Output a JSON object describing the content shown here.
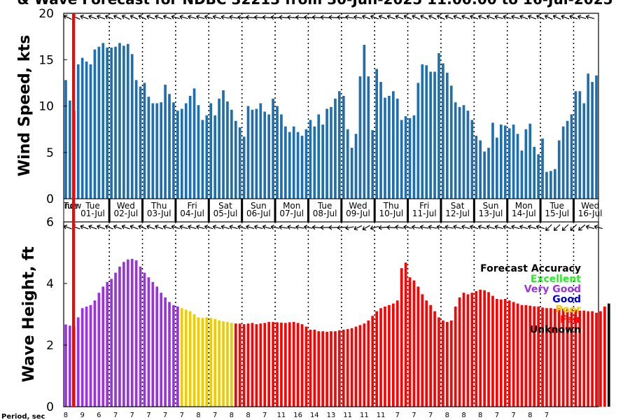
{
  "title": "& Wave Forecast for NDBC 32213 from 30-Jun-2025 11:00:00 to 16-Jul-2025",
  "period_label": "Period, sec",
  "colors": {
    "wind_bar": "#1f6faf",
    "now_line": "#ff0000",
    "accuracy": {
      "Excellent": "#22ee22",
      "Very Good": "#9933dd",
      "Good": "#0000cc",
      "Poor": "#eecc00",
      "Fair": "#ff0000",
      "Unknown": "#000000"
    }
  },
  "accuracy_legend": {
    "title": "Forecast Accuracy",
    "items": [
      "Excellent",
      "Very Good",
      "Good",
      "Poor",
      "Fair",
      "Unknown"
    ]
  },
  "now_marker": {
    "line1": "Tue",
    "line2": "now"
  },
  "days": [
    {
      "dow": "Tue",
      "date": "01-Jul"
    },
    {
      "dow": "Wed",
      "date": "02-Jul"
    },
    {
      "dow": "Thu",
      "date": "03-Jul"
    },
    {
      "dow": "Fri",
      "date": "04-Jul"
    },
    {
      "dow": "Sat",
      "date": "05-Jul"
    },
    {
      "dow": "Sun",
      "date": "06-Jul"
    },
    {
      "dow": "Mon",
      "date": "07-Jul"
    },
    {
      "dow": "Tue",
      "date": "08-Jul"
    },
    {
      "dow": "Wed",
      "date": "09-Jul"
    },
    {
      "dow": "Thu",
      "date": "10-Jul"
    },
    {
      "dow": "Fri",
      "date": "11-Jul"
    },
    {
      "dow": "Sat",
      "date": "12-Jul"
    },
    {
      "dow": "Sun",
      "date": "13-Jul"
    },
    {
      "dow": "Mon",
      "date": "14-Jul"
    },
    {
      "dow": "Tue",
      "date": "15-Jul"
    },
    {
      "dow": "Wed",
      "date": "16-Jul"
    }
  ],
  "chart_data": [
    {
      "type": "bar",
      "ylabel": "Wind Speed, kts",
      "ylim": [
        0,
        20
      ],
      "yticks": [
        0,
        5,
        10,
        15,
        20
      ],
      "values": [
        12.8,
        10.6,
        9.5,
        14.5,
        15.2,
        14.8,
        14.5,
        16.1,
        16.4,
        16.8,
        16.3,
        16.3,
        16.4,
        16.8,
        16.5,
        16.7,
        15.6,
        12.8,
        12.1,
        12.5,
        11.0,
        10.3,
        10.3,
        10.4,
        12.3,
        11.3,
        10.4,
        9.5,
        9.7,
        10.3,
        11.1,
        11.9,
        10.1,
        8.5,
        9.0,
        10.3,
        9.0,
        10.8,
        11.7,
        10.5,
        9.6,
        8.4,
        7.7,
        6.7,
        10.0,
        9.6,
        9.7,
        10.3,
        9.4,
        9.1,
        10.8,
        10.0,
        9.1,
        7.8,
        7.2,
        7.8,
        7.2,
        6.8,
        7.5,
        8.5,
        7.8,
        9.1,
        8.0,
        9.7,
        9.9,
        10.8,
        11.6,
        11.1,
        7.5,
        5.5,
        7.0,
        13.2,
        16.6,
        13.2,
        7.4,
        14.0,
        12.6,
        10.9,
        11.1,
        11.6,
        10.8,
        8.5,
        8.9,
        8.7,
        9.0,
        12.5,
        14.5,
        14.4,
        13.7,
        13.7,
        15.7,
        14.6,
        13.6,
        12.2,
        10.4,
        9.9,
        10.1,
        9.5,
        8.5,
        6.8,
        6.3,
        5.1,
        5.5,
        8.2,
        6.6,
        8.0,
        7.9,
        7.6,
        8.0,
        7.0,
        5.2,
        7.5,
        8.1,
        5.6,
        4.8,
        6.5,
        2.9,
        3.0,
        3.2,
        6.3,
        7.8,
        8.4,
        9.1,
        11.6,
        11.6,
        10.3,
        13.5,
        12.6,
        13.3
      ],
      "direction_angles_deg": [
        25,
        25,
        25,
        20,
        20,
        20,
        20,
        20,
        20,
        20,
        20,
        20,
        25,
        25,
        25,
        25,
        25,
        25,
        25,
        25,
        20,
        20,
        20,
        20,
        20,
        15,
        15,
        15,
        15,
        15,
        15,
        15,
        15,
        15,
        15,
        15,
        15,
        15,
        10,
        10,
        10,
        10,
        5,
        5,
        5,
        5,
        5,
        5,
        5,
        5,
        5,
        5,
        5,
        5,
        5,
        5,
        5,
        5,
        5,
        5,
        5,
        5,
        5,
        5,
        5,
        5,
        5,
        5,
        10,
        10,
        10,
        15,
        20,
        20,
        20,
        20,
        20,
        20,
        20,
        20,
        20,
        25,
        25,
        25,
        25,
        25,
        25,
        25,
        25,
        25,
        25,
        25,
        20,
        20,
        20,
        20,
        20,
        20,
        20,
        20,
        20,
        20,
        20,
        20,
        15,
        15,
        15,
        15,
        15,
        15,
        20,
        20,
        20,
        20,
        25,
        25,
        25,
        25,
        25,
        20,
        20,
        20,
        20,
        15,
        15,
        15,
        15,
        15
      ]
    },
    {
      "type": "bar",
      "ylabel": "Wave Height, ft",
      "ylim": [
        0,
        6
      ],
      "yticks": [
        0,
        2,
        4,
        6
      ],
      "values": [
        2.67,
        2.63,
        2.6,
        2.9,
        3.2,
        3.25,
        3.3,
        3.45,
        3.7,
        3.9,
        4.05,
        4.15,
        4.35,
        4.55,
        4.7,
        4.78,
        4.8,
        4.75,
        4.55,
        4.35,
        4.2,
        4.05,
        3.9,
        3.7,
        3.55,
        3.4,
        3.3,
        3.25,
        3.2,
        3.15,
        3.1,
        3.0,
        2.9,
        2.88,
        2.9,
        2.88,
        2.85,
        2.8,
        2.77,
        2.75,
        2.72,
        2.7,
        2.7,
        2.68,
        2.7,
        2.72,
        2.68,
        2.7,
        2.72,
        2.75,
        2.75,
        2.74,
        2.73,
        2.72,
        2.74,
        2.75,
        2.72,
        2.68,
        2.6,
        2.5,
        2.5,
        2.45,
        2.45,
        2.43,
        2.45,
        2.45,
        2.48,
        2.5,
        2.52,
        2.55,
        2.6,
        2.65,
        2.7,
        2.8,
        2.95,
        3.1,
        3.2,
        3.25,
        3.3,
        3.35,
        3.45,
        4.5,
        4.68,
        4.2,
        4.1,
        3.9,
        3.65,
        3.45,
        3.3,
        3.1,
        2.9,
        2.8,
        2.75,
        2.8,
        3.25,
        3.55,
        3.7,
        3.65,
        3.7,
        3.75,
        3.8,
        3.78,
        3.72,
        3.6,
        3.5,
        3.48,
        3.5,
        3.45,
        3.4,
        3.35,
        3.3,
        3.3,
        3.28,
        3.26,
        3.25,
        3.22,
        3.2,
        3.2,
        3.18,
        3.2,
        3.18,
        3.17,
        3.18,
        3.15,
        3.12,
        3.12,
        3.1,
        3.1,
        3.05,
        3.1,
        3.25,
        3.35
      ],
      "accuracy": [
        "Very Good",
        "Very Good",
        "Very Good",
        "Very Good",
        "Very Good",
        "Very Good",
        "Very Good",
        "Very Good",
        "Very Good",
        "Very Good",
        "Very Good",
        "Very Good",
        "Very Good",
        "Very Good",
        "Very Good",
        "Very Good",
        "Very Good",
        "Very Good",
        "Very Good",
        "Very Good",
        "Very Good",
        "Very Good",
        "Very Good",
        "Very Good",
        "Very Good",
        "Very Good",
        "Very Good",
        "Very Good",
        "Poor",
        "Poor",
        "Poor",
        "Poor",
        "Poor",
        "Poor",
        "Poor",
        "Poor",
        "Poor",
        "Poor",
        "Poor",
        "Poor",
        "Poor",
        "Fair",
        "Fair",
        "Fair",
        "Fair",
        "Fair",
        "Fair",
        "Fair",
        "Fair",
        "Fair",
        "Fair",
        "Fair",
        "Fair",
        "Fair",
        "Fair",
        "Fair",
        "Fair",
        "Fair",
        "Fair",
        "Fair",
        "Fair",
        "Fair",
        "Fair",
        "Fair",
        "Fair",
        "Fair",
        "Fair",
        "Fair",
        "Fair",
        "Fair",
        "Fair",
        "Fair",
        "Fair",
        "Fair",
        "Fair",
        "Fair",
        "Fair",
        "Fair",
        "Fair",
        "Fair",
        "Fair",
        "Fair",
        "Fair",
        "Fair",
        "Fair",
        "Fair",
        "Fair",
        "Fair",
        "Fair",
        "Fair",
        "Fair",
        "Fair",
        "Fair",
        "Fair",
        "Fair",
        "Fair",
        "Fair",
        "Fair",
        "Fair",
        "Fair",
        "Fair",
        "Fair",
        "Fair",
        "Fair",
        "Fair",
        "Fair",
        "Fair",
        "Fair",
        "Fair",
        "Fair",
        "Fair",
        "Fair",
        "Fair",
        "Fair",
        "Fair",
        "Fair",
        "Fair",
        "Fair",
        "Fair",
        "Fair",
        "Fair",
        "Fair",
        "Fair",
        "Fair",
        "Fair",
        "Fair",
        "Fair",
        "Fair",
        "Fair",
        "Fair",
        "Fair"
      ],
      "direction_angles_deg": [
        20,
        20,
        20,
        20,
        20,
        20,
        20,
        20,
        20,
        20,
        20,
        20,
        20,
        20,
        20,
        20,
        20,
        20,
        20,
        20,
        20,
        20,
        20,
        20,
        15,
        15,
        15,
        15,
        15,
        15,
        15,
        15,
        15,
        15,
        15,
        15,
        15,
        15,
        15,
        15,
        15,
        15,
        15,
        15,
        15,
        15,
        15,
        15,
        15,
        10,
        10,
        10,
        10,
        10,
        10,
        10,
        10,
        10,
        10,
        5,
        5,
        5,
        0,
        0,
        0,
        0,
        -5,
        -5,
        -10,
        -20,
        -25,
        -30,
        -30,
        -25,
        -15,
        -10,
        -5,
        0,
        5,
        10,
        10,
        10,
        10,
        10,
        10,
        10,
        10,
        10,
        10,
        10,
        10,
        10,
        10,
        15,
        15,
        15,
        15,
        15,
        15,
        15,
        15,
        15,
        15,
        15,
        15,
        15,
        15,
        15,
        15,
        15,
        15,
        15,
        15,
        15,
        15,
        -40,
        -45,
        -45,
        -45,
        -40,
        -45,
        -45,
        -45,
        -40,
        -40,
        15,
        15,
        15,
        15,
        15
      ],
      "period_sec_labels": [
        "8",
        "9",
        "6",
        "7",
        "7",
        "7",
        "7",
        "7",
        "8",
        "7",
        "8",
        "8",
        "7",
        "11",
        "16",
        "14",
        "13",
        "11",
        "11",
        "11",
        "7",
        "7",
        "7",
        "8",
        "8",
        "8",
        "7",
        "7",
        "8",
        "7"
      ]
    }
  ]
}
